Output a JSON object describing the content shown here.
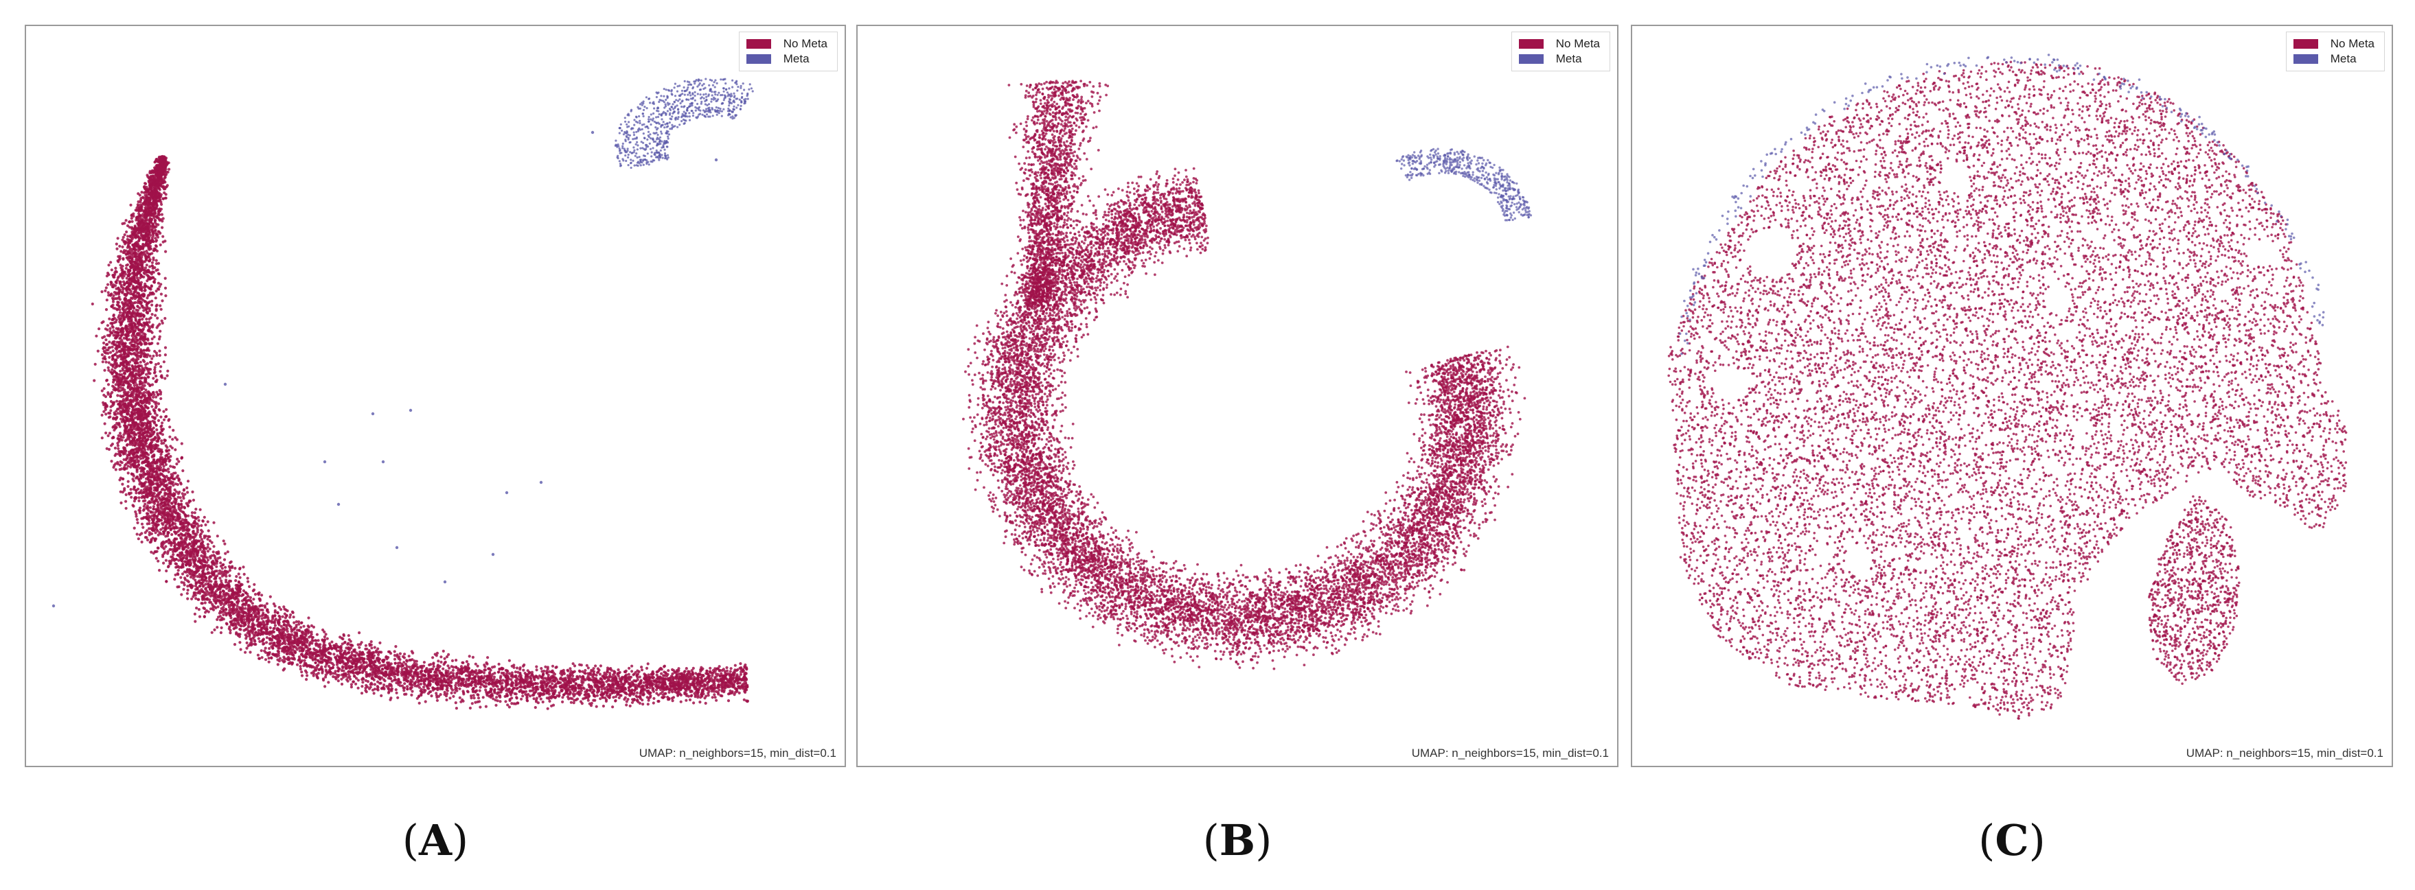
{
  "chart_data": [
    {
      "type": "scatter",
      "panel_label": "A",
      "footer": "UMAP: n_neighbors=15, min_dist=0.1",
      "legend_placement": "top-right",
      "axes_visible": false,
      "series": [
        {
          "name": "No Meta",
          "color": "#a0124a",
          "shape": "elongated crescent band from top-left sweeping down to bottom-right"
        },
        {
          "name": "Meta",
          "color": "#5b5aaa",
          "shape": "small cluster at top-right plus a few isolated outliers"
        }
      ]
    },
    {
      "type": "scatter",
      "panel_label": "B",
      "footer": "UMAP: n_neighbors=15, min_dist=0.1",
      "legend_placement": "top-right",
      "axes_visible": false,
      "series": [
        {
          "name": "No Meta",
          "color": "#a0124a",
          "shape": "thick horseshoe-shaped ring"
        },
        {
          "name": "Meta",
          "color": "#5b5aaa",
          "shape": "cap at the top-right end of the horseshoe"
        }
      ]
    },
    {
      "type": "scatter",
      "panel_label": "C",
      "footer": "UMAP: n_neighbors=15, min_dist=0.1",
      "legend_placement": "top-right",
      "axes_visible": false,
      "series": [
        {
          "name": "No Meta",
          "color": "#a0124a",
          "shape": "large dome-shaped blob with a lobe at bottom-right"
        },
        {
          "name": "Meta",
          "color": "#5b5aaa",
          "shape": "sparse points along the upper edge"
        }
      ]
    }
  ],
  "legend": {
    "no_meta": "No Meta",
    "meta": "Meta"
  },
  "labels": {
    "a": "A",
    "b": "B",
    "c": "C"
  },
  "footer": "UMAP: n_neighbors=15, min_dist=0.1",
  "colors": {
    "no_meta": "#a0124a",
    "meta": "#5b5aaa",
    "frame": "#9a9a9a"
  }
}
